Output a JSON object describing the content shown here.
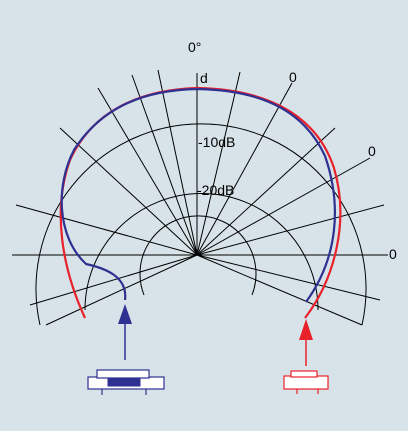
{
  "diagram": {
    "background_color": "#d7e3e8",
    "grid_color": "#000000",
    "red_curve_color": "#e8212b",
    "blue_curve_color": "#2e3192",
    "labels": {
      "top_angle": "0°",
      "outer_ring_top": "d",
      "ring_minus10": "-10dB",
      "ring_minus20": "-20dB",
      "spoke_upper_right": "0",
      "spoke_right": "0",
      "spoke_far_right": "0"
    },
    "icons": {
      "left_source": "blue-microphone-icon",
      "right_source": "red-microphone-icon"
    }
  }
}
